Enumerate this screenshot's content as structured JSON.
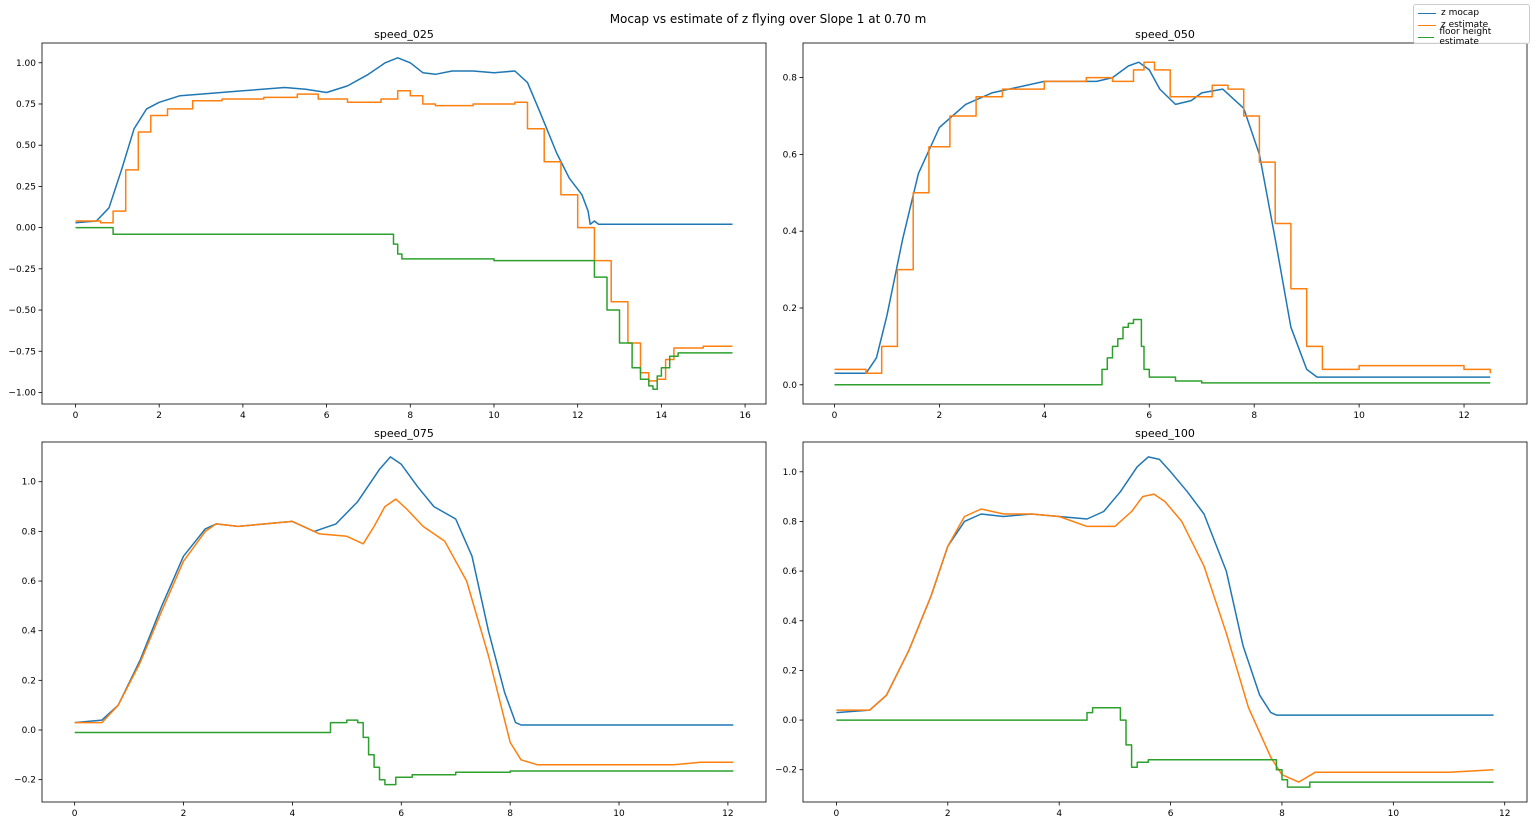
{
  "figure_title": "Mocap vs estimate of z flying over Slope 1 at 0.70 m",
  "legend": {
    "items": [
      {
        "label": "z mocap",
        "color": "#1f77b4"
      },
      {
        "label": "z estimate",
        "color": "#ff7f0e"
      },
      {
        "label": "floor height estimate",
        "color": "#2ca02c"
      }
    ]
  },
  "chart_data": [
    {
      "type": "line",
      "title": "speed_025",
      "xlim": [
        -0.8,
        16.5
      ],
      "ylim": [
        -1.07,
        1.12
      ],
      "xticks": [
        0,
        2,
        4,
        6,
        8,
        10,
        12,
        14,
        16
      ],
      "xtick_labels": [
        "0",
        "2",
        "4",
        "6",
        "8",
        "10",
        "12",
        "14",
        "16"
      ],
      "yticks": [
        -1.0,
        -0.75,
        -0.5,
        -0.25,
        0.0,
        0.25,
        0.5,
        0.75,
        1.0
      ],
      "ytick_labels": [
        "−1.00",
        "−0.75",
        "−0.50",
        "−0.25",
        "0.00",
        "0.25",
        "0.50",
        "0.75",
        "1.00"
      ],
      "series": [
        {
          "name": "z mocap",
          "color": "#1f77b4",
          "step": false,
          "x": [
            0,
            0.5,
            0.8,
            1.1,
            1.4,
            1.7,
            2.0,
            2.5,
            3.0,
            4.0,
            5.0,
            5.5,
            6.0,
            6.5,
            7.0,
            7.4,
            7.7,
            8.0,
            8.3,
            8.6,
            9.0,
            9.5,
            10.0,
            10.5,
            10.8,
            11.1,
            11.5,
            11.8,
            12.1,
            12.25,
            12.3,
            12.4,
            12.5,
            13.0,
            14.0,
            15.7
          ],
          "y": [
            0.03,
            0.04,
            0.12,
            0.35,
            0.6,
            0.72,
            0.76,
            0.8,
            0.81,
            0.83,
            0.85,
            0.84,
            0.82,
            0.86,
            0.93,
            1.0,
            1.03,
            1.0,
            0.94,
            0.93,
            0.95,
            0.95,
            0.94,
            0.95,
            0.88,
            0.7,
            0.45,
            0.3,
            0.2,
            0.1,
            0.02,
            0.04,
            0.02,
            0.02,
            0.02,
            0.02
          ]
        },
        {
          "name": "z estimate",
          "color": "#ff7f0e",
          "step": true,
          "x": [
            0,
            0.6,
            0.9,
            1.2,
            1.5,
            1.8,
            2.2,
            2.8,
            3.5,
            4.5,
            5.3,
            5.8,
            6.5,
            7.3,
            7.7,
            8.0,
            8.3,
            8.6,
            9.5,
            10.5,
            10.8,
            11.2,
            11.6,
            12.0,
            12.4,
            12.8,
            13.2,
            13.5,
            13.7,
            13.9,
            14.1,
            14.3,
            15.0,
            15.7
          ],
          "y": [
            0.04,
            0.03,
            0.1,
            0.35,
            0.58,
            0.68,
            0.72,
            0.77,
            0.78,
            0.79,
            0.81,
            0.78,
            0.76,
            0.78,
            0.83,
            0.8,
            0.75,
            0.74,
            0.75,
            0.76,
            0.6,
            0.4,
            0.2,
            0.0,
            -0.2,
            -0.45,
            -0.7,
            -0.88,
            -0.93,
            -0.92,
            -0.8,
            -0.73,
            -0.72,
            -0.72
          ]
        },
        {
          "name": "floor height estimate",
          "color": "#2ca02c",
          "step": true,
          "x": [
            0,
            0.8,
            0.9,
            7.5,
            7.6,
            7.7,
            7.8,
            8.5,
            10.0,
            12.2,
            12.4,
            12.7,
            13.0,
            13.3,
            13.5,
            13.7,
            13.8,
            13.9,
            14.0,
            14.2,
            14.4,
            15.0,
            15.7
          ],
          "y": [
            0.0,
            0.0,
            -0.04,
            -0.04,
            -0.1,
            -0.16,
            -0.19,
            -0.19,
            -0.2,
            -0.2,
            -0.3,
            -0.5,
            -0.7,
            -0.85,
            -0.92,
            -0.96,
            -0.98,
            -0.9,
            -0.85,
            -0.78,
            -0.76,
            -0.76,
            -0.76
          ]
        }
      ]
    },
    {
      "type": "line",
      "title": "speed_050",
      "xlim": [
        -0.6,
        13.2
      ],
      "ylim": [
        -0.05,
        0.89
      ],
      "xticks": [
        0,
        2,
        4,
        6,
        8,
        10,
        12
      ],
      "xtick_labels": [
        "0",
        "2",
        "4",
        "6",
        "8",
        "10",
        "12"
      ],
      "yticks": [
        0.0,
        0.2,
        0.4,
        0.6,
        0.8
      ],
      "ytick_labels": [
        "0.0",
        "0.2",
        "0.4",
        "0.6",
        "0.8"
      ],
      "series": [
        {
          "name": "z mocap",
          "color": "#1f77b4",
          "step": false,
          "x": [
            0,
            0.6,
            0.8,
            1.0,
            1.3,
            1.6,
            2.0,
            2.5,
            3.0,
            4.0,
            5.0,
            5.3,
            5.6,
            5.8,
            6.0,
            6.2,
            6.5,
            6.8,
            7.0,
            7.4,
            7.8,
            8.1,
            8.4,
            8.7,
            9.0,
            9.2,
            9.5,
            10.0,
            12.5
          ],
          "y": [
            0.03,
            0.03,
            0.07,
            0.18,
            0.38,
            0.55,
            0.67,
            0.73,
            0.76,
            0.79,
            0.79,
            0.8,
            0.83,
            0.84,
            0.82,
            0.77,
            0.73,
            0.74,
            0.76,
            0.77,
            0.72,
            0.6,
            0.38,
            0.15,
            0.04,
            0.02,
            0.02,
            0.02,
            0.02
          ]
        },
        {
          "name": "z estimate",
          "color": "#ff7f0e",
          "step": true,
          "x": [
            0,
            0.6,
            0.9,
            1.2,
            1.5,
            1.8,
            2.2,
            2.7,
            3.2,
            4.0,
            4.8,
            5.3,
            5.7,
            5.9,
            6.1,
            6.4,
            6.8,
            7.2,
            7.5,
            7.8,
            8.1,
            8.4,
            8.7,
            9.0,
            9.3,
            9.6,
            10.0,
            11.0,
            12.0,
            12.5
          ],
          "y": [
            0.04,
            0.03,
            0.1,
            0.3,
            0.5,
            0.62,
            0.7,
            0.75,
            0.77,
            0.79,
            0.8,
            0.79,
            0.82,
            0.84,
            0.82,
            0.75,
            0.75,
            0.78,
            0.77,
            0.7,
            0.58,
            0.42,
            0.25,
            0.1,
            0.04,
            0.04,
            0.05,
            0.05,
            0.04,
            0.03
          ]
        },
        {
          "name": "floor height estimate",
          "color": "#2ca02c",
          "step": true,
          "x": [
            0,
            5.0,
            5.1,
            5.2,
            5.3,
            5.4,
            5.5,
            5.6,
            5.7,
            5.8,
            5.85,
            5.9,
            6.0,
            6.5,
            7.0,
            8.0,
            9.0,
            12.5
          ],
          "y": [
            0.0,
            0.0,
            0.04,
            0.07,
            0.1,
            0.12,
            0.15,
            0.16,
            0.17,
            0.17,
            0.1,
            0.04,
            0.02,
            0.01,
            0.005,
            0.005,
            0.005,
            0.005
          ]
        }
      ]
    },
    {
      "type": "line",
      "title": "speed_075",
      "xlim": [
        -0.6,
        12.7
      ],
      "ylim": [
        -0.29,
        1.16
      ],
      "xticks": [
        0,
        2,
        4,
        6,
        8,
        10,
        12
      ],
      "xtick_labels": [
        "0",
        "2",
        "4",
        "6",
        "8",
        "10",
        "12"
      ],
      "yticks": [
        -0.2,
        0.0,
        0.2,
        0.4,
        0.6,
        0.8,
        1.0
      ],
      "ytick_labels": [
        "−0.2",
        "0.0",
        "0.2",
        "0.4",
        "0.6",
        "0.8",
        "1.0"
      ],
      "series": [
        {
          "name": "z mocap",
          "color": "#1f77b4",
          "step": false,
          "x": [
            0,
            0.5,
            0.8,
            1.2,
            1.6,
            2.0,
            2.4,
            2.6,
            3.0,
            3.5,
            4.0,
            4.4,
            4.8,
            5.2,
            5.6,
            5.8,
            6.0,
            6.3,
            6.6,
            7.0,
            7.3,
            7.6,
            7.9,
            8.1,
            8.2,
            9.0,
            12.1
          ],
          "y": [
            0.03,
            0.04,
            0.1,
            0.28,
            0.5,
            0.7,
            0.81,
            0.83,
            0.82,
            0.83,
            0.84,
            0.8,
            0.83,
            0.92,
            1.05,
            1.1,
            1.07,
            0.98,
            0.9,
            0.85,
            0.7,
            0.4,
            0.15,
            0.03,
            0.02,
            0.02,
            0.02
          ]
        },
        {
          "name": "z estimate",
          "color": "#ff7f0e",
          "step": false,
          "x": [
            0,
            0.5,
            0.8,
            1.2,
            1.6,
            2.0,
            2.4,
            2.6,
            3.0,
            3.5,
            4.0,
            4.5,
            5.0,
            5.3,
            5.5,
            5.7,
            5.9,
            6.1,
            6.4,
            6.8,
            7.2,
            7.6,
            8.0,
            8.2,
            8.5,
            9.0,
            10.0,
            11.0,
            11.5,
            12.1
          ],
          "y": [
            0.03,
            0.03,
            0.1,
            0.27,
            0.48,
            0.68,
            0.8,
            0.83,
            0.82,
            0.83,
            0.84,
            0.79,
            0.78,
            0.75,
            0.82,
            0.9,
            0.93,
            0.89,
            0.82,
            0.76,
            0.6,
            0.3,
            -0.05,
            -0.12,
            -0.14,
            -0.14,
            -0.14,
            -0.14,
            -0.13,
            -0.13
          ]
        },
        {
          "name": "floor height estimate",
          "color": "#2ca02c",
          "step": true,
          "x": [
            0,
            4.6,
            4.7,
            5.0,
            5.2,
            5.3,
            5.4,
            5.5,
            5.6,
            5.7,
            5.9,
            6.2,
            7.0,
            8.0,
            9.0,
            12.1
          ],
          "y": [
            -0.01,
            -0.01,
            0.03,
            0.04,
            0.03,
            -0.03,
            -0.1,
            -0.15,
            -0.2,
            -0.22,
            -0.19,
            -0.18,
            -0.17,
            -0.165,
            -0.165,
            -0.165
          ]
        }
      ]
    },
    {
      "type": "line",
      "title": "speed_100",
      "xlim": [
        -0.6,
        12.4
      ],
      "ylim": [
        -0.33,
        1.12
      ],
      "xticks": [
        0,
        2,
        4,
        6,
        8,
        10,
        12
      ],
      "xtick_labels": [
        "0",
        "2",
        "4",
        "6",
        "8",
        "10",
        "12"
      ],
      "yticks": [
        -0.2,
        0.0,
        0.2,
        0.4,
        0.6,
        0.8,
        1.0
      ],
      "ytick_labels": [
        "−0.2",
        "0.0",
        "0.2",
        "0.4",
        "0.6",
        "0.8",
        "1.0"
      ],
      "series": [
        {
          "name": "z mocap",
          "color": "#1f77b4",
          "step": false,
          "x": [
            0,
            0.6,
            0.9,
            1.3,
            1.7,
            2.0,
            2.3,
            2.6,
            3.0,
            3.5,
            4.0,
            4.5,
            4.8,
            5.1,
            5.4,
            5.6,
            5.8,
            6.0,
            6.3,
            6.6,
            7.0,
            7.3,
            7.6,
            7.8,
            7.9,
            8.5,
            11.8
          ],
          "y": [
            0.03,
            0.04,
            0.1,
            0.28,
            0.5,
            0.7,
            0.8,
            0.83,
            0.82,
            0.83,
            0.82,
            0.81,
            0.84,
            0.92,
            1.02,
            1.06,
            1.05,
            1.0,
            0.92,
            0.83,
            0.6,
            0.3,
            0.1,
            0.03,
            0.02,
            0.02,
            0.02
          ]
        },
        {
          "name": "z estimate",
          "color": "#ff7f0e",
          "step": false,
          "x": [
            0,
            0.6,
            0.9,
            1.3,
            1.7,
            2.0,
            2.3,
            2.6,
            3.0,
            3.5,
            4.0,
            4.5,
            5.0,
            5.3,
            5.5,
            5.7,
            5.9,
            6.2,
            6.6,
            7.0,
            7.4,
            7.8,
            8.0,
            8.3,
            8.6,
            9.0,
            10.0,
            11.0,
            11.8
          ],
          "y": [
            0.04,
            0.04,
            0.1,
            0.28,
            0.5,
            0.7,
            0.82,
            0.85,
            0.83,
            0.83,
            0.82,
            0.78,
            0.78,
            0.84,
            0.9,
            0.91,
            0.88,
            0.8,
            0.62,
            0.35,
            0.05,
            -0.15,
            -0.22,
            -0.25,
            -0.21,
            -0.21,
            -0.21,
            -0.21,
            -0.2
          ]
        },
        {
          "name": "floor height estimate",
          "color": "#2ca02c",
          "step": true,
          "x": [
            0,
            4.4,
            4.5,
            4.6,
            5.0,
            5.1,
            5.2,
            5.3,
            5.4,
            5.6,
            6.5,
            7.8,
            7.9,
            8.0,
            8.1,
            8.3,
            8.5,
            9.0,
            11.8
          ],
          "y": [
            0.0,
            0.0,
            0.03,
            0.05,
            0.05,
            0.0,
            -0.1,
            -0.19,
            -0.17,
            -0.16,
            -0.16,
            -0.16,
            -0.2,
            -0.24,
            -0.27,
            -0.27,
            -0.25,
            -0.25,
            -0.25
          ]
        }
      ]
    }
  ]
}
